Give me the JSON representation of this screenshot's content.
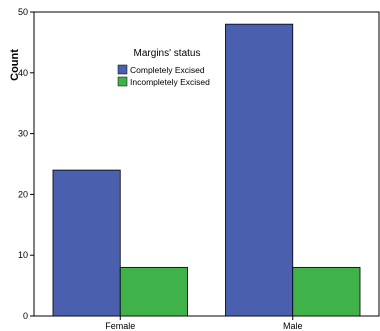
{
  "chart_data": {
    "type": "bar",
    "categories": [
      "Female",
      "Male"
    ],
    "series": [
      {
        "name": "Completely Excised",
        "values": [
          24,
          48
        ],
        "color": "#4a5fae"
      },
      {
        "name": "Incompletely Excised",
        "values": [
          8,
          8
        ],
        "color": "#3fb24a"
      }
    ],
    "xlabel": "",
    "ylabel": "Count",
    "ylim": [
      0,
      50
    ],
    "yticks": [
      0,
      10,
      20,
      30,
      40,
      50
    ],
    "grid": false,
    "legend": {
      "title": "Margins' status",
      "position": "top-center"
    }
  }
}
